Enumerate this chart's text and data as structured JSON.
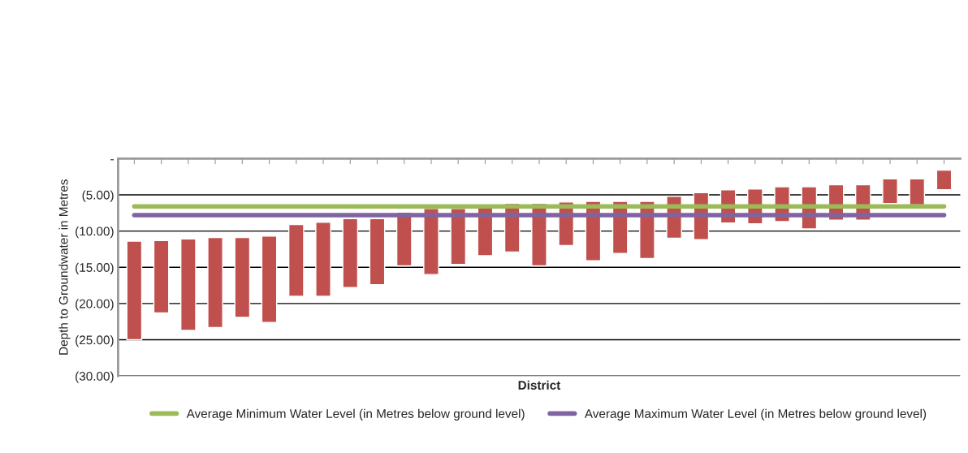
{
  "chart_data": {
    "type": "bar",
    "xlabel": "District",
    "ylabel": "Depth to Groundwater in Metres",
    "categories": [
      null,
      null,
      null,
      null,
      null,
      null,
      null,
      null,
      null,
      null,
      null,
      null,
      null,
      null,
      null,
      null,
      null,
      null,
      null,
      null,
      null,
      null,
      null,
      null,
      null,
      null,
      null,
      null,
      null,
      null,
      null
    ],
    "series": [
      {
        "color": "#c0504d",
        "base": [
          -11.4,
          -11.3,
          -11.1,
          -10.9,
          -10.9,
          -10.7,
          -9.1,
          -8.8,
          -8.3,
          -8.3,
          -7.4,
          -6.9,
          -6.9,
          -6.8,
          -6.2,
          -6.2,
          -6.0,
          -5.9,
          -5.9,
          -5.9,
          -5.2,
          -4.7,
          -4.3,
          -4.2,
          -3.9,
          -3.9,
          -3.6,
          -3.6,
          -2.8,
          -2.8,
          -1.6
        ],
        "values": [
          -13.6,
          -10.0,
          -12.6,
          -12.4,
          -11.0,
          -11.9,
          -9.9,
          -10.2,
          -9.5,
          -9.1,
          -7.4,
          -9.1,
          -7.7,
          -6.6,
          -6.7,
          -8.6,
          -6.0,
          -8.2,
          -7.2,
          -7.9,
          -5.8,
          -6.5,
          -4.6,
          -4.8,
          -4.8,
          -5.8,
          -4.9,
          -4.9,
          -3.4,
          -3.6,
          -2.7
        ]
      },
      {
        "type": "line",
        "name": "Average Minimum Water Level (in Metres below ground level)",
        "color": "#9bbb59",
        "values": [
          -6.6,
          -6.6,
          -6.6,
          -6.6,
          -6.6,
          -6.6,
          -6.6,
          -6.6,
          -6.6,
          -6.6,
          -6.6,
          -6.6,
          -6.6,
          -6.6,
          -6.6,
          -6.6,
          -6.6,
          -6.6,
          -6.6,
          -6.6,
          -6.6,
          -6.6,
          -6.6,
          -6.6,
          -6.6,
          -6.6,
          -6.6,
          -6.6,
          -6.6,
          -6.6,
          -6.6
        ]
      },
      {
        "type": "line",
        "name": "Average Maximum Water Level (in Metres below ground level)",
        "color": "#8064a2",
        "values": [
          -7.8,
          -7.8,
          -7.8,
          -7.8,
          -7.8,
          -7.8,
          -7.8,
          -7.8,
          -7.8,
          -7.8,
          -7.8,
          -7.8,
          -7.8,
          -7.8,
          -7.8,
          -7.8,
          -7.8,
          -7.8,
          -7.8,
          -7.8,
          -7.8,
          -7.8,
          -7.8,
          -7.8,
          -7.8,
          -7.8,
          -7.8,
          -7.8,
          -7.8,
          -7.8,
          -7.8
        ]
      }
    ],
    "ylim": [
      -30,
      0
    ],
    "yticks": [
      {
        "value": 0,
        "label": "-"
      },
      {
        "value": -5,
        "label": "(5.00)"
      },
      {
        "value": -10,
        "label": "(10.00)"
      },
      {
        "value": -15,
        "label": "(15.00)"
      },
      {
        "value": -20,
        "label": "(20.00)"
      },
      {
        "value": -25,
        "label": "(25.00)"
      },
      {
        "value": -30,
        "label": "(30.00)"
      }
    ],
    "grid": "y",
    "legend": "bottom",
    "tick_labels": "y",
    "marker": "none",
    "line_style": "solid"
  }
}
